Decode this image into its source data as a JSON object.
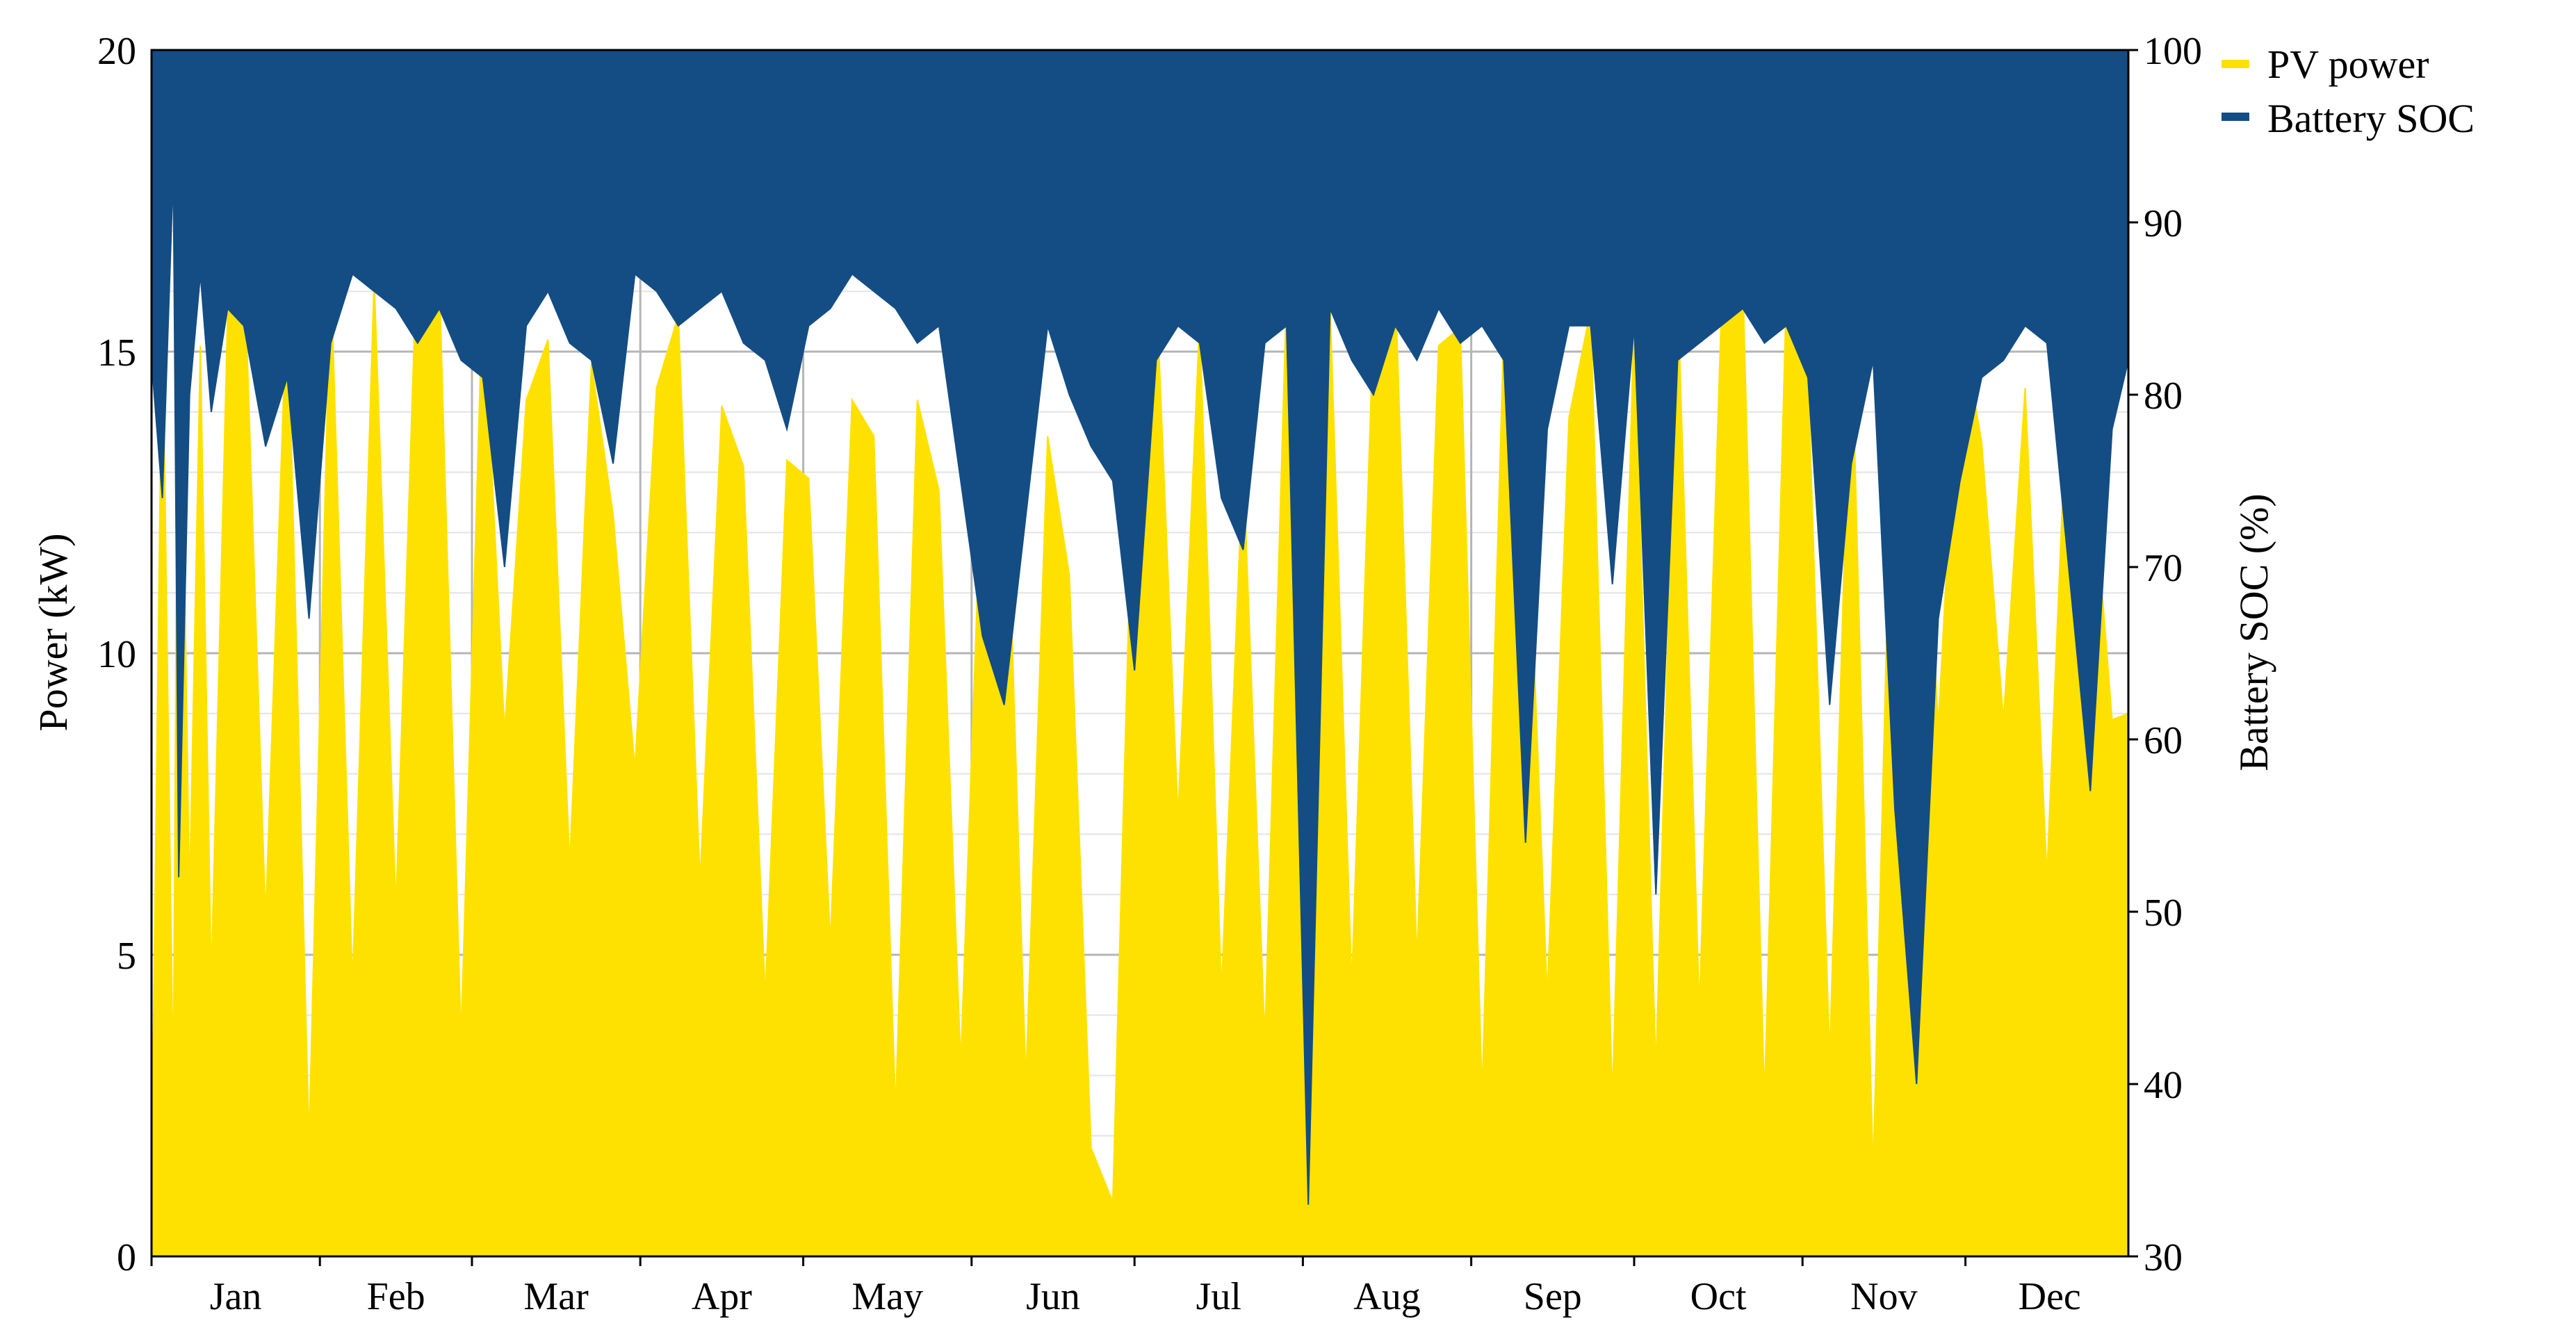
{
  "chart_data": {
    "type": "area",
    "title": "",
    "xlabel": "",
    "ylabel": "Power (kW)",
    "y2label": "Battery SOC (%)",
    "x_unit": "day of year",
    "xlim": [
      1,
      365
    ],
    "ylim": [
      0,
      20
    ],
    "y2lim": [
      30,
      100
    ],
    "y_ticks": [
      0,
      5,
      10,
      15,
      20
    ],
    "y2_ticks": [
      30,
      40,
      50,
      60,
      70,
      80,
      90,
      100
    ],
    "months": [
      "Jan",
      "Feb",
      "Mar",
      "Apr",
      "May",
      "Jun",
      "Jul",
      "Aug",
      "Sep",
      "Oct",
      "Nov",
      "Dec"
    ],
    "grid": true,
    "legend_position": "top-right",
    "series": [
      {
        "name": "PV power",
        "axis": "left",
        "color": "#FFE100",
        "x": [
          1,
          3,
          5,
          6,
          8,
          10,
          12,
          15,
          18,
          22,
          26,
          30,
          34,
          38,
          42,
          46,
          50,
          54,
          58,
          62,
          66,
          70,
          74,
          78,
          82,
          86,
          90,
          94,
          98,
          102,
          106,
          110,
          114,
          118,
          122,
          126,
          130,
          134,
          138,
          142,
          146,
          150,
          154,
          158,
          162,
          166,
          170,
          174,
          178,
          182,
          186,
          190,
          194,
          198,
          202,
          206,
          210,
          214,
          218,
          222,
          226,
          230,
          234,
          238,
          242,
          246,
          250,
          254,
          258,
          262,
          266,
          270,
          274,
          278,
          282,
          286,
          290,
          294,
          298,
          302,
          306,
          310,
          314,
          318,
          322,
          326,
          330,
          334,
          338,
          342,
          346,
          350,
          354,
          358,
          362,
          365
        ],
        "y": [
          1.2,
          15.8,
          2.8,
          17.5,
          6.0,
          15.1,
          4.6,
          15.6,
          16.7,
          5.6,
          16.1,
          1.9,
          16.4,
          4.5,
          16.2,
          5.8,
          17.0,
          16.2,
          3.6,
          16.1,
          8.7,
          14.2,
          15.2,
          6.5,
          14.8,
          12.3,
          8.1,
          14.4,
          15.6,
          6.2,
          14.1,
          13.1,
          4.3,
          13.2,
          12.9,
          5.2,
          14.2,
          13.6,
          2.4,
          14.2,
          12.7,
          3.2,
          13.4,
          14.5,
          2.9,
          13.6,
          11.3,
          1.8,
          0.9,
          14.2,
          16.1,
          7.3,
          15.5,
          4.4,
          13.2,
          3.6,
          16.0,
          1.9,
          15.8,
          4.5,
          15.5,
          16.2,
          4.9,
          15.1,
          15.4,
          2.7,
          15.4,
          13.6,
          4.3,
          13.9,
          15.7,
          2.6,
          15.6,
          3.1,
          16.1,
          4.1,
          15.5,
          16.2,
          2.6,
          15.9,
          14.7,
          3.3,
          15.6,
          1.4,
          15.7,
          15.8,
          8.8,
          15.6,
          13.5,
          8.9,
          14.4,
          6.3,
          15.0,
          13.5,
          8.9,
          9.0
        ]
      },
      {
        "name": "Battery SOC",
        "axis": "right",
        "color": "#134D84",
        "x": [
          1,
          3,
          5,
          6,
          8,
          10,
          12,
          15,
          18,
          22,
          26,
          30,
          34,
          38,
          42,
          46,
          50,
          54,
          58,
          62,
          66,
          70,
          74,
          78,
          82,
          86,
          90,
          94,
          98,
          102,
          106,
          110,
          114,
          118,
          122,
          126,
          130,
          134,
          138,
          142,
          146,
          150,
          154,
          158,
          162,
          166,
          170,
          174,
          178,
          182,
          186,
          190,
          194,
          198,
          202,
          206,
          210,
          214,
          218,
          222,
          226,
          230,
          234,
          238,
          242,
          246,
          250,
          254,
          258,
          262,
          266,
          270,
          274,
          278,
          282,
          286,
          290,
          294,
          298,
          302,
          306,
          310,
          314,
          318,
          322,
          326,
          330,
          334,
          338,
          342,
          346,
          350,
          354,
          358,
          362,
          365
        ],
        "y": [
          82,
          74,
          93,
          52,
          80,
          87,
          79,
          85,
          84,
          77,
          81,
          67,
          83,
          87,
          86,
          85,
          83,
          85,
          82,
          81,
          70,
          84,
          86,
          83,
          82,
          76,
          87,
          86,
          84,
          85,
          86,
          83,
          82,
          78,
          84,
          85,
          87,
          86,
          85,
          83,
          84,
          75,
          66,
          62,
          73,
          84,
          80,
          77,
          75,
          64,
          82,
          84,
          83,
          74,
          71,
          83,
          84,
          33,
          85,
          82,
          80,
          84,
          82,
          85,
          83,
          84,
          82,
          54,
          78,
          84,
          84,
          69,
          84,
          51,
          82,
          83,
          84,
          85,
          83,
          84,
          81,
          62,
          76,
          82,
          56,
          40,
          67,
          75,
          81,
          82,
          84,
          83,
          70,
          57,
          78,
          82
        ]
      }
    ]
  }
}
